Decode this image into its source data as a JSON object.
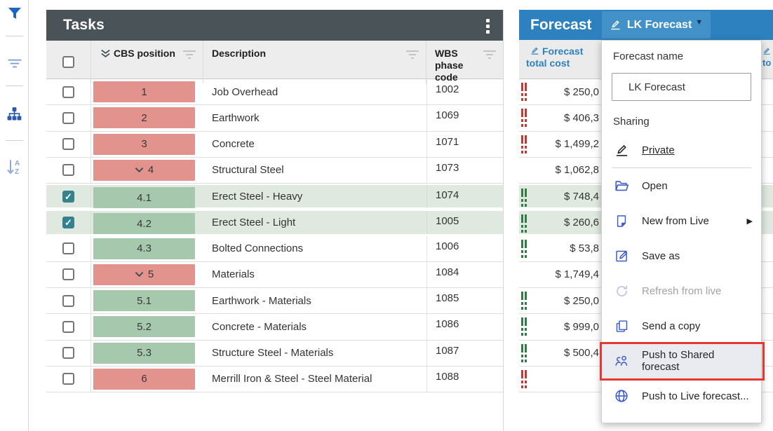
{
  "colors": {
    "accent_blue": "#2d81bf",
    "button_blue": "#4292c9",
    "tasks_header_dark": "#4a5358",
    "badge_red": "#e2938e",
    "badge_green": "#a6c9ad",
    "selected_row_green": "#dfe9df",
    "menu_icon_blue": "#3b5bc7",
    "indicator_red": "#bf3a32",
    "indicator_green": "#2f7d44",
    "annotation_red": "#e7372e",
    "checkbox_teal": "#35818e"
  },
  "rail": {
    "icons": [
      {
        "name": "filter-funnel-icon"
      },
      {
        "name": "filter-lines-icon"
      },
      {
        "name": "hierarchy-icon"
      },
      {
        "name": "sort-az-icon"
      }
    ]
  },
  "tasks": {
    "title": "Tasks",
    "columns": {
      "cbs": "CBS position",
      "description": "Description",
      "wbs": "WBS phase code"
    },
    "rows": [
      {
        "cbs": "1",
        "desc": "Job Overhead",
        "wbs": "1002",
        "tone": "red",
        "expand": false,
        "checked": false,
        "selected": false
      },
      {
        "cbs": "2",
        "desc": "Earthwork",
        "wbs": "1069",
        "tone": "red",
        "expand": false,
        "checked": false,
        "selected": false
      },
      {
        "cbs": "3",
        "desc": "Concrete",
        "wbs": "1071",
        "tone": "red",
        "expand": false,
        "checked": false,
        "selected": false
      },
      {
        "cbs": "4",
        "desc": "Structural Steel",
        "wbs": "1073",
        "tone": "red",
        "expand": true,
        "checked": false,
        "selected": false
      },
      {
        "cbs": "4.1",
        "desc": "Erect Steel - Heavy",
        "wbs": "1074",
        "tone": "green",
        "expand": false,
        "checked": true,
        "selected": true
      },
      {
        "cbs": "4.2",
        "desc": "Erect Steel - Light",
        "wbs": "1005",
        "tone": "green",
        "expand": false,
        "checked": true,
        "selected": true
      },
      {
        "cbs": "4.3",
        "desc": "Bolted Connections",
        "wbs": "1006",
        "tone": "green",
        "expand": false,
        "checked": false,
        "selected": false
      },
      {
        "cbs": "5",
        "desc": "Materials",
        "wbs": "1084",
        "tone": "red",
        "expand": true,
        "checked": false,
        "selected": false
      },
      {
        "cbs": "5.1",
        "desc": "Earthwork - Materials",
        "wbs": "1085",
        "tone": "green",
        "expand": false,
        "checked": false,
        "selected": false
      },
      {
        "cbs": "5.2",
        "desc": "Concrete - Materials",
        "wbs": "1086",
        "tone": "green",
        "expand": false,
        "checked": false,
        "selected": false
      },
      {
        "cbs": "5.3",
        "desc": "Structure Steel - Materials",
        "wbs": "1087",
        "tone": "green",
        "expand": false,
        "checked": false,
        "selected": false
      },
      {
        "cbs": "6",
        "desc": "Merrill Iron & Steel - Steel Material",
        "wbs": "1088",
        "tone": "red",
        "expand": false,
        "checked": false,
        "selected": false
      }
    ]
  },
  "forecast": {
    "title": "Forecast",
    "button_label": "LK Forecast",
    "column_header": "Forecast total cost",
    "next_column_partial": "to",
    "rows": [
      {
        "value": "$ 250,0",
        "indicator": "red",
        "selected": false
      },
      {
        "value": "$ 406,3",
        "indicator": "red",
        "selected": false
      },
      {
        "value": "$ 1,499,2",
        "indicator": "red",
        "selected": false
      },
      {
        "value": "$ 1,062,8",
        "indicator": "none",
        "selected": false
      },
      {
        "value": "$ 748,4",
        "indicator": "green",
        "selected": true
      },
      {
        "value": "$ 260,6",
        "indicator": "green",
        "selected": true
      },
      {
        "value": "$ 53,8",
        "indicator": "green",
        "selected": false
      },
      {
        "value": "$ 1,749,4",
        "indicator": "none",
        "selected": false
      },
      {
        "value": "$ 250,0",
        "indicator": "green",
        "selected": false
      },
      {
        "value": "$ 999,0",
        "indicator": "green",
        "selected": false
      },
      {
        "value": "$ 500,4",
        "indicator": "green",
        "selected": false
      },
      {
        "value": "",
        "indicator": "red",
        "selected": false
      }
    ]
  },
  "menu": {
    "name_label": "Forecast name",
    "name_value": "LK Forecast",
    "sharing_label": "Sharing",
    "items": [
      {
        "label": "Private",
        "icon": "pencil-underline-icon",
        "variant": "link",
        "divider_after": true
      },
      {
        "label": "Open",
        "icon": "folder-open-icon"
      },
      {
        "label": "New from Live",
        "icon": "new-doc-icon",
        "submenu": true
      },
      {
        "label": "Save as",
        "icon": "save-as-icon"
      },
      {
        "label": "Refresh from live",
        "icon": "refresh-icon",
        "disabled": true
      },
      {
        "label": "Send a copy",
        "icon": "copy-icon"
      },
      {
        "label": "Push to Shared forecast",
        "icon": "people-icon",
        "highlighted": true,
        "annotated": true
      },
      {
        "label": "Push to Live forecast...",
        "icon": "globe-icon"
      }
    ]
  }
}
